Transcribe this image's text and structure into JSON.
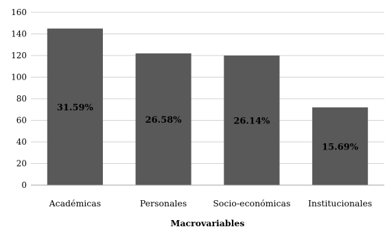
{
  "chart_data": {
    "type": "bar",
    "categories": [
      "Académicas",
      "Personales",
      "Socio-económicas",
      "Institucionales"
    ],
    "values": [
      145,
      122,
      120,
      72
    ],
    "data_labels": [
      "31.59%",
      "26.58%",
      "26.14%",
      "15.69%"
    ],
    "title": "",
    "xlabel": "Macrovariables",
    "ylabel": "",
    "ylim": [
      0,
      160
    ],
    "yticks": [
      0,
      20,
      40,
      60,
      80,
      100,
      120,
      140,
      160
    ],
    "grid": true,
    "bar_color": "#595959"
  }
}
